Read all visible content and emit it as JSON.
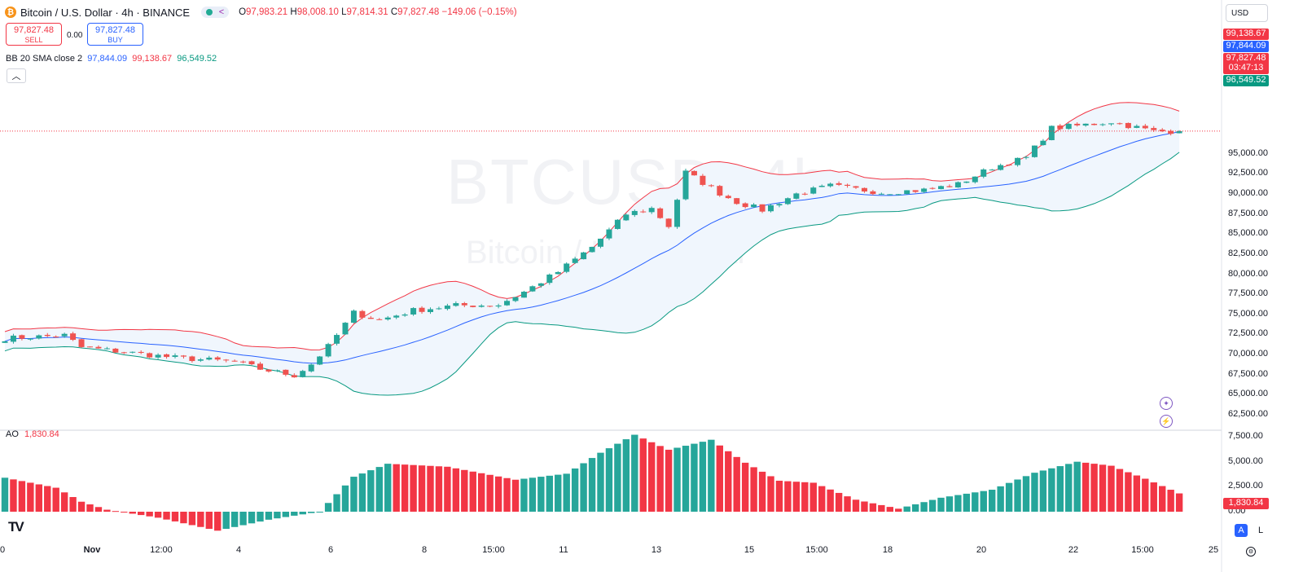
{
  "header": {
    "coin_icon": "bitcoin-icon",
    "title": "Bitcoin / U.S. Dollar · 4h · BINANCE",
    "ohlc": {
      "o_label": "O",
      "o": "97,983.21",
      "h_label": "H",
      "h": "98,008.10",
      "l_label": "L",
      "l": "97,814.31",
      "c_label": "C",
      "c": "97,827.48",
      "change": "−149.06 (−0.15%)"
    }
  },
  "trade": {
    "sell_price": "97,827.48",
    "sell_label": "SELL",
    "spread": "0.00",
    "buy_price": "97,827.48",
    "buy_label": "BUY"
  },
  "indicator_bb": {
    "name": "BB 20 SMA close 2",
    "basis": "97,844.09",
    "upper": "99,138.67",
    "lower": "96,549.52"
  },
  "indicator_ao": {
    "name": "AO",
    "value": "1,830.84"
  },
  "currency": "USD",
  "watermark": {
    "symbol": "BTCUSD, 4h",
    "desc": "Bitcoin / U.S. Dollar"
  },
  "price_axis": [
    "95,000.00",
    "92,500.00",
    "90,000.00",
    "87,500.00",
    "85,000.00",
    "82,500.00",
    "80,000.00",
    "77,500.00",
    "75,000.00",
    "72,500.00",
    "70,000.00",
    "67,500.00",
    "65,000.00",
    "62,500.00"
  ],
  "price_tags": {
    "upper": "99,138.67",
    "basis": "97,844.09",
    "last": "97,827.48",
    "countdown": "03:47:13",
    "lower": "96,549.52"
  },
  "ao_axis": [
    "7,500.00",
    "5,000.00",
    "2,500.00",
    "0.00"
  ],
  "ao_tag": "1,830.84",
  "time_axis": [
    "0",
    "Nov",
    "12:00",
    "4",
    "6",
    "8",
    "15:00",
    "11",
    "13",
    "15",
    "15:00",
    "18",
    "20",
    "22",
    "15:00",
    "25"
  ],
  "scale_buttons": {
    "auto": "A",
    "log": "L"
  },
  "colors": {
    "up": "#26a69a",
    "down": "#ef5350",
    "bb_upper": "#f23645",
    "bb_basis": "#2962ff",
    "bb_lower": "#089981",
    "fill": "#f0f6fd",
    "ao_up": "#26a69a",
    "ao_down": "#f23645"
  },
  "chart_data": {
    "type": "candlestick",
    "timeframe": "4h",
    "ylim": [
      62500,
      100000
    ],
    "last": 97827.48,
    "anchors": [
      [
        0,
        72000
      ],
      [
        7,
        72400
      ],
      [
        9,
        70900
      ],
      [
        20,
        69600
      ],
      [
        27,
        69100
      ],
      [
        30,
        68200
      ],
      [
        34,
        67400
      ],
      [
        36,
        68800
      ],
      [
        38,
        71000
      ],
      [
        41,
        75200
      ],
      [
        44,
        74300
      ],
      [
        48,
        75500
      ],
      [
        53,
        76100
      ],
      [
        58,
        76200
      ],
      [
        61,
        77800
      ],
      [
        65,
        80300
      ],
      [
        69,
        83400
      ],
      [
        73,
        87500
      ],
      [
        76,
        88200
      ],
      [
        78,
        86000
      ],
      [
        80,
        92700
      ],
      [
        84,
        90100
      ],
      [
        86,
        89000
      ],
      [
        89,
        88000
      ],
      [
        93,
        90000
      ],
      [
        97,
        91000
      ],
      [
        103,
        90200
      ],
      [
        108,
        90500
      ],
      [
        112,
        91200
      ],
      [
        116,
        93300
      ],
      [
        120,
        94500
      ],
      [
        123,
        98200
      ],
      [
        126,
        98500
      ],
      [
        130,
        99000
      ],
      [
        135,
        97800
      ],
      [
        138,
        97827
      ]
    ],
    "ao_anchors": [
      [
        0,
        3400
      ],
      [
        6,
        2400
      ],
      [
        9,
        1000
      ],
      [
        12,
        200
      ],
      [
        18,
        -600
      ],
      [
        25,
        -1900
      ],
      [
        31,
        -800
      ],
      [
        37,
        0
      ],
      [
        41,
        3500
      ],
      [
        45,
        4800
      ],
      [
        52,
        4500
      ],
      [
        60,
        3200
      ],
      [
        66,
        3800
      ],
      [
        70,
        5900
      ],
      [
        74,
        7700
      ],
      [
        78,
        6200
      ],
      [
        83,
        7200
      ],
      [
        87,
        4900
      ],
      [
        91,
        3100
      ],
      [
        95,
        2900
      ],
      [
        100,
        1200
      ],
      [
        105,
        300
      ],
      [
        110,
        1400
      ],
      [
        116,
        2200
      ],
      [
        121,
        3900
      ],
      [
        126,
        5000
      ],
      [
        130,
        4600
      ],
      [
        134,
        3300
      ],
      [
        138,
        1831
      ]
    ]
  }
}
